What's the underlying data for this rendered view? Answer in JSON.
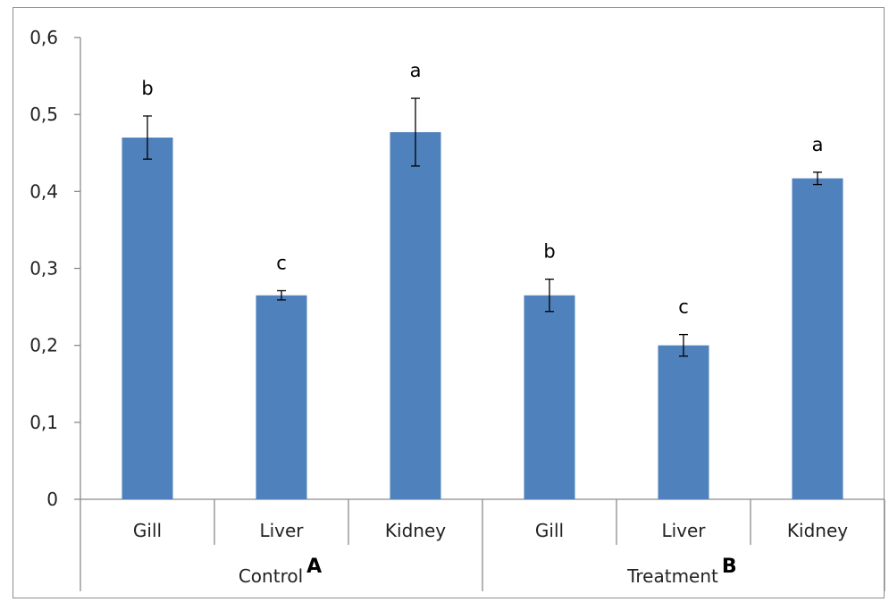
{
  "chart_data": {
    "type": "bar",
    "groups": [
      {
        "label": "Control",
        "tag": "A",
        "categories": [
          "Gill",
          "Liver",
          "Kidney"
        ]
      },
      {
        "label": "Treatment",
        "tag": "B",
        "categories": [
          "Gill",
          "Liver",
          "Kidney"
        ]
      }
    ],
    "categories": [
      "Gill",
      "Liver",
      "Kidney",
      "Gill",
      "Liver",
      "Kidney"
    ],
    "values": [
      0.47,
      0.265,
      0.477,
      0.265,
      0.2,
      0.417
    ],
    "error": [
      0.028,
      0.006,
      0.044,
      0.021,
      0.014,
      0.008
    ],
    "significance_letters": [
      "b",
      "c",
      "a",
      "b",
      "c",
      "a"
    ],
    "y_ticks": [
      "0",
      "0,1",
      "0,2",
      "0,3",
      "0,4",
      "0,5",
      "0,6"
    ],
    "ylim": [
      0,
      0.6
    ],
    "bar_color": "#4f81bd",
    "grid": false,
    "legend": "none"
  }
}
